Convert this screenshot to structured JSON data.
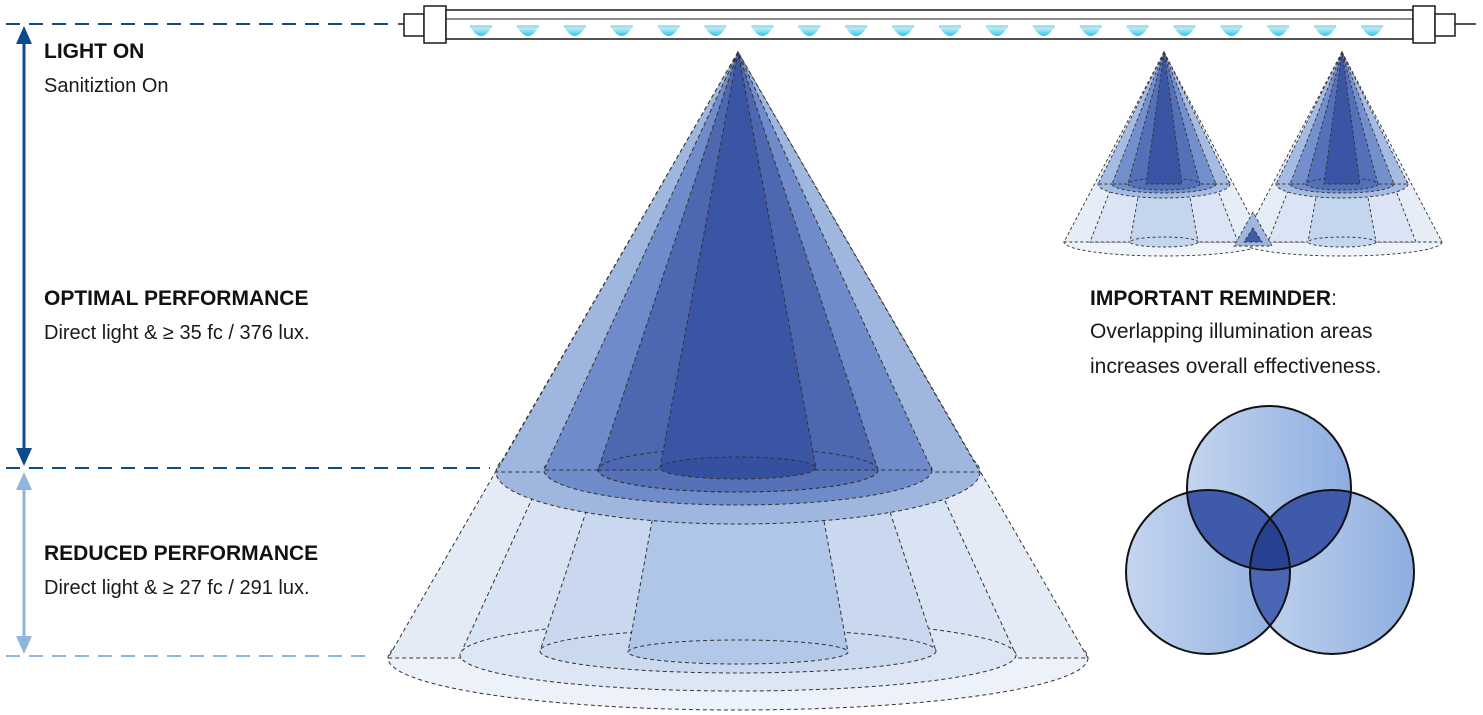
{
  "zones": {
    "light_on": {
      "title": "LIGHT ON",
      "description": "Sanitiztion On"
    },
    "optimal": {
      "title": "OPTIMAL PERFORMANCE",
      "description": "Direct light &  ≥ 35 fc / 376 lux."
    },
    "reduced": {
      "title": "REDUCED PERFORMANCE",
      "description": "Direct light &  ≥ 27 fc / 291 lux."
    }
  },
  "reminder": {
    "title": "IMPORTANT REMINDER",
    "separator": ":",
    "line1": "Overlapping illumination areas",
    "line2": "increases overall effectiveness."
  },
  "tube": {
    "led_count": 20
  },
  "colors": {
    "dark_blue": "#0d4a8c",
    "light_blue": "#8fb6dd",
    "cone_core": "#3a55a4",
    "cone_mid": "#5a76be",
    "cone_outer": "#8fa9da",
    "cone_faint": "#c8d6ee",
    "led_cyan": "#5ed6ef",
    "venn_light": "#a9c1e6",
    "venn_overlap": "#3f5aaa",
    "venn_center": "#26418f"
  }
}
